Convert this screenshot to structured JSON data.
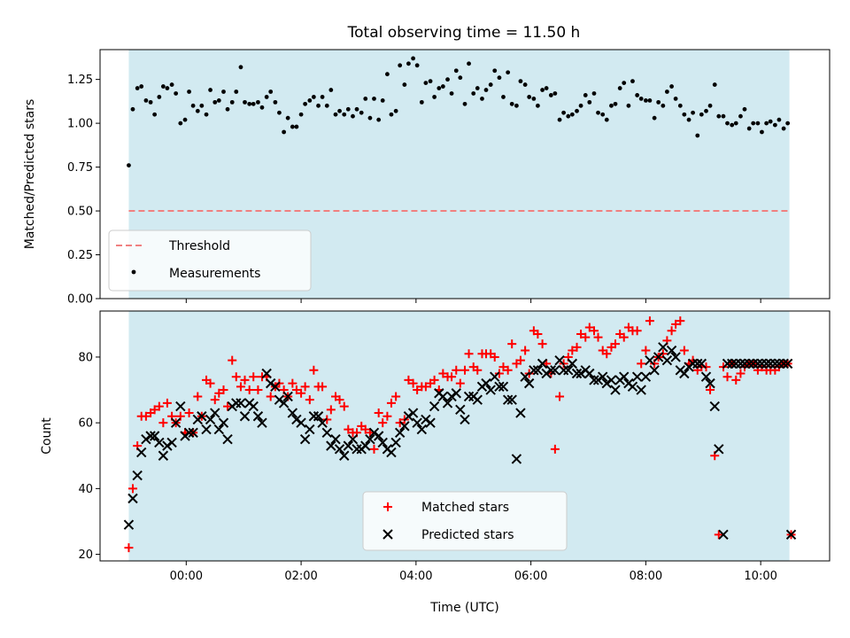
{
  "figure": {
    "title": "Total observing time = 11.50 h"
  },
  "chart_data": [
    {
      "type": "scatter",
      "title": "Total observing time = 11.50 h",
      "xlabel": "",
      "ylabel": "Matched/Predicted stars",
      "x_unit": "hours (UTC)",
      "xlim": [
        -1.5,
        11.2
      ],
      "ylim": [
        0.0,
        1.42
      ],
      "yticks": [
        0.0,
        0.25,
        0.5,
        0.75,
        1.0,
        1.25
      ],
      "ytick_labels": [
        "0.00",
        "0.25",
        "0.50",
        "0.75",
        "1.00",
        "1.25"
      ],
      "xticks": [
        0,
        2,
        4,
        6,
        8,
        10
      ],
      "show_xtick_labels": false,
      "shaded_span": {
        "x0": -1.0,
        "x1": 10.5,
        "color": "#add8e6"
      },
      "threshold": {
        "label": "Threshold",
        "y": 0.5,
        "color": "#f08080",
        "style": "dashed"
      },
      "series": [
        {
          "name": "Measurements",
          "color": "#000000",
          "marker": "dot",
          "x": [
            -1.0,
            -0.93,
            -0.85,
            -0.78,
            -0.7,
            -0.62,
            -0.55,
            -0.47,
            -0.4,
            -0.33,
            -0.25,
            -0.18,
            -0.1,
            -0.02,
            0.05,
            0.12,
            0.2,
            0.27,
            0.35,
            0.42,
            0.5,
            0.57,
            0.65,
            0.72,
            0.8,
            0.87,
            0.95,
            1.02,
            1.1,
            1.17,
            1.25,
            1.32,
            1.4,
            1.47,
            1.55,
            1.62,
            1.7,
            1.77,
            1.85,
            1.92,
            2.0,
            2.07,
            2.15,
            2.22,
            2.3,
            2.37,
            2.45,
            2.52,
            2.6,
            2.67,
            2.75,
            2.82,
            2.9,
            2.97,
            3.05,
            3.12,
            3.2,
            3.27,
            3.35,
            3.42,
            3.5,
            3.57,
            3.65,
            3.72,
            3.8,
            3.87,
            3.95,
            4.02,
            4.1,
            4.17,
            4.25,
            4.32,
            4.4,
            4.47,
            4.55,
            4.62,
            4.7,
            4.77,
            4.85,
            4.92,
            5.0,
            5.07,
            5.15,
            5.22,
            5.3,
            5.37,
            5.45,
            5.52,
            5.6,
            5.67,
            5.75,
            5.82,
            5.9,
            5.97,
            6.05,
            6.12,
            6.2,
            6.27,
            6.35,
            6.42,
            6.5,
            6.57,
            6.65,
            6.72,
            6.8,
            6.87,
            6.95,
            7.02,
            7.1,
            7.17,
            7.25,
            7.32,
            7.4,
            7.47,
            7.55,
            7.62,
            7.7,
            7.77,
            7.85,
            7.92,
            8.0,
            8.07,
            8.15,
            8.22,
            8.3,
            8.37,
            8.45,
            8.52,
            8.6,
            8.67,
            8.75,
            8.82,
            8.9,
            8.97,
            9.05,
            9.12,
            9.2,
            9.27,
            9.35,
            9.42,
            9.5,
            9.57,
            9.65,
            9.72,
            9.8,
            9.87,
            9.95,
            10.02,
            10.1,
            10.17,
            10.25,
            10.32,
            10.4,
            10.47
          ],
          "y": [
            0.76,
            1.08,
            1.2,
            1.21,
            1.13,
            1.12,
            1.05,
            1.15,
            1.21,
            1.2,
            1.22,
            1.17,
            1.0,
            1.02,
            1.18,
            1.1,
            1.07,
            1.1,
            1.05,
            1.19,
            1.12,
            1.13,
            1.18,
            1.08,
            1.12,
            1.18,
            1.32,
            1.12,
            1.11,
            1.11,
            1.12,
            1.09,
            1.15,
            1.18,
            1.12,
            1.06,
            0.95,
            1.03,
            0.98,
            0.98,
            1.05,
            1.11,
            1.13,
            1.15,
            1.1,
            1.15,
            1.1,
            1.19,
            1.05,
            1.07,
            1.05,
            1.08,
            1.04,
            1.08,
            1.06,
            1.14,
            1.03,
            1.14,
            1.02,
            1.13,
            1.28,
            1.05,
            1.07,
            1.33,
            1.22,
            1.34,
            1.37,
            1.33,
            1.12,
            1.23,
            1.24,
            1.15,
            1.2,
            1.21,
            1.25,
            1.17,
            1.3,
            1.26,
            1.11,
            1.34,
            1.17,
            1.2,
            1.14,
            1.19,
            1.22,
            1.3,
            1.26,
            1.15,
            1.29,
            1.11,
            1.1,
            1.24,
            1.22,
            1.15,
            1.14,
            1.1,
            1.19,
            1.2,
            1.16,
            1.17,
            1.02,
            1.06,
            1.04,
            1.05,
            1.07,
            1.1,
            1.16,
            1.12,
            1.17,
            1.06,
            1.05,
            1.02,
            1.1,
            1.11,
            1.2,
            1.23,
            1.1,
            1.24,
            1.16,
            1.14,
            1.13,
            1.13,
            1.03,
            1.12,
            1.1,
            1.18,
            1.21,
            1.14,
            1.1,
            1.05,
            1.02,
            1.06,
            0.93,
            1.05,
            1.07,
            1.1,
            1.22,
            1.04,
            1.04,
            1.0,
            0.99,
            1.0,
            1.04,
            1.08,
            0.97,
            1.0,
            1.0,
            0.95,
            1.0,
            1.01,
            0.99,
            1.02,
            0.97,
            1.0
          ],
          "x_note": "hours"
        }
      ],
      "legend": {
        "placement": "lower-left",
        "entries": [
          "Threshold",
          "Measurements"
        ]
      }
    },
    {
      "type": "scatter",
      "xlabel": "Time (UTC)",
      "ylabel": "Count",
      "xlim": [
        -1.5,
        11.2
      ],
      "ylim": [
        18,
        94
      ],
      "yticks": [
        20,
        40,
        60,
        80
      ],
      "ytick_labels": [
        "20",
        "40",
        "60",
        "80"
      ],
      "xticks": [
        0,
        2,
        4,
        6,
        8,
        10
      ],
      "xtick_labels": [
        "00:00",
        "02:00",
        "04:00",
        "06:00",
        "08:00",
        "10:00"
      ],
      "shaded_span": {
        "x0": -1.0,
        "x1": 10.5,
        "color": "#add8e6"
      },
      "series": [
        {
          "name": "Matched stars",
          "color": "#ff0000",
          "marker": "plus",
          "x": [
            -1.0,
            -0.93,
            -0.85,
            -0.78,
            -0.7,
            -0.62,
            -0.55,
            -0.47,
            -0.4,
            -0.33,
            -0.25,
            -0.18,
            -0.1,
            -0.02,
            0.05,
            0.12,
            0.2,
            0.27,
            0.35,
            0.42,
            0.5,
            0.57,
            0.65,
            0.72,
            0.8,
            0.87,
            0.95,
            1.02,
            1.1,
            1.17,
            1.25,
            1.32,
            1.4,
            1.47,
            1.55,
            1.62,
            1.7,
            1.77,
            1.85,
            1.92,
            2.0,
            2.07,
            2.15,
            2.22,
            2.3,
            2.37,
            2.45,
            2.52,
            2.6,
            2.67,
            2.75,
            2.82,
            2.9,
            2.97,
            3.05,
            3.12,
            3.2,
            3.27,
            3.35,
            3.42,
            3.5,
            3.57,
            3.65,
            3.72,
            3.8,
            3.87,
            3.95,
            4.02,
            4.1,
            4.17,
            4.25,
            4.32,
            4.4,
            4.47,
            4.55,
            4.62,
            4.7,
            4.77,
            4.85,
            4.92,
            5.0,
            5.07,
            5.15,
            5.22,
            5.3,
            5.37,
            5.45,
            5.52,
            5.6,
            5.67,
            5.75,
            5.82,
            5.9,
            5.97,
            6.05,
            6.12,
            6.2,
            6.27,
            6.35,
            6.42,
            6.5,
            6.57,
            6.65,
            6.72,
            6.8,
            6.87,
            6.95,
            7.02,
            7.1,
            7.17,
            7.25,
            7.32,
            7.4,
            7.47,
            7.55,
            7.62,
            7.7,
            7.77,
            7.85,
            7.92,
            8.0,
            8.07,
            8.15,
            8.22,
            8.3,
            8.37,
            8.45,
            8.52,
            8.6,
            8.67,
            8.75,
            8.82,
            8.9,
            8.97,
            9.05,
            9.12,
            9.2,
            9.27,
            9.35,
            9.42,
            9.5,
            9.57,
            9.65,
            9.72,
            9.8,
            9.87,
            9.95,
            10.02,
            10.1,
            10.17,
            10.25,
            10.32,
            10.4,
            10.47,
            10.53
          ],
          "y": [
            22,
            40,
            53,
            62,
            62,
            63,
            64,
            65,
            60,
            66,
            62,
            60,
            62,
            57,
            63,
            57,
            68,
            62,
            73,
            72,
            67,
            69,
            70,
            65,
            79,
            74,
            71,
            73,
            70,
            74,
            70,
            74,
            74,
            68,
            71,
            72,
            70,
            68,
            72,
            70,
            69,
            71,
            67,
            76,
            71,
            71,
            61,
            64,
            68,
            67,
            65,
            58,
            57,
            57,
            59,
            58,
            57,
            52,
            63,
            60,
            62,
            66,
            68,
            60,
            61,
            73,
            72,
            70,
            71,
            71,
            72,
            73,
            70,
            75,
            74,
            74,
            76,
            72,
            76,
            81,
            77,
            76,
            81,
            81,
            81,
            80,
            75,
            77,
            76,
            84,
            78,
            79,
            82,
            75,
            88,
            87,
            84,
            78,
            75,
            52,
            68,
            78,
            80,
            82,
            83,
            87,
            86,
            89,
            88,
            86,
            82,
            81,
            83,
            84,
            87,
            86,
            89,
            88,
            88,
            78,
            82,
            91,
            78,
            80,
            81,
            85,
            88,
            90,
            91,
            82,
            78,
            79,
            76,
            77,
            77,
            70,
            50,
            26,
            77,
            74,
            78,
            73,
            75,
            77,
            78,
            78,
            76,
            77,
            76,
            76,
            76,
            77,
            78,
            78,
            26
          ]
        },
        {
          "name": "Predicted stars",
          "color": "#000000",
          "marker": "x",
          "x": [
            -1.0,
            -0.93,
            -0.85,
            -0.78,
            -0.7,
            -0.62,
            -0.55,
            -0.47,
            -0.4,
            -0.33,
            -0.25,
            -0.18,
            -0.1,
            -0.02,
            0.05,
            0.12,
            0.2,
            0.27,
            0.35,
            0.42,
            0.5,
            0.57,
            0.65,
            0.72,
            0.8,
            0.87,
            0.95,
            1.02,
            1.1,
            1.17,
            1.25,
            1.32,
            1.4,
            1.47,
            1.55,
            1.62,
            1.7,
            1.77,
            1.85,
            1.92,
            2.0,
            2.07,
            2.15,
            2.22,
            2.3,
            2.37,
            2.45,
            2.52,
            2.6,
            2.67,
            2.75,
            2.82,
            2.9,
            2.97,
            3.05,
            3.12,
            3.2,
            3.27,
            3.35,
            3.42,
            3.5,
            3.57,
            3.65,
            3.72,
            3.8,
            3.87,
            3.95,
            4.02,
            4.1,
            4.17,
            4.25,
            4.32,
            4.4,
            4.47,
            4.55,
            4.62,
            4.7,
            4.77,
            4.85,
            4.92,
            5.0,
            5.07,
            5.15,
            5.22,
            5.3,
            5.37,
            5.45,
            5.52,
            5.6,
            5.67,
            5.75,
            5.82,
            5.9,
            5.97,
            6.05,
            6.12,
            6.2,
            6.27,
            6.35,
            6.42,
            6.5,
            6.57,
            6.65,
            6.72,
            6.8,
            6.87,
            6.95,
            7.02,
            7.1,
            7.17,
            7.25,
            7.32,
            7.4,
            7.47,
            7.55,
            7.62,
            7.7,
            7.77,
            7.85,
            7.92,
            8.0,
            8.07,
            8.15,
            8.22,
            8.3,
            8.37,
            8.45,
            8.52,
            8.6,
            8.67,
            8.75,
            8.82,
            8.9,
            8.97,
            9.05,
            9.12,
            9.2,
            9.27,
            9.35,
            9.42,
            9.5,
            9.57,
            9.65,
            9.72,
            9.8,
            9.87,
            9.95,
            10.02,
            10.1,
            10.17,
            10.25,
            10.32,
            10.4,
            10.47,
            10.53
          ],
          "y": [
            29,
            37,
            44,
            51,
            55,
            56,
            56,
            54,
            50,
            53,
            54,
            60,
            65,
            56,
            57,
            57,
            61,
            62,
            58,
            61,
            63,
            58,
            60,
            55,
            65,
            66,
            66,
            62,
            66,
            65,
            62,
            60,
            75,
            72,
            71,
            67,
            66,
            68,
            63,
            61,
            60,
            55,
            58,
            62,
            62,
            60,
            57,
            53,
            55,
            52,
            50,
            53,
            55,
            52,
            52,
            53,
            55,
            57,
            56,
            54,
            52,
            51,
            54,
            57,
            59,
            62,
            63,
            60,
            58,
            61,
            60,
            65,
            69,
            68,
            66,
            68,
            69,
            64,
            61,
            68,
            68,
            67,
            71,
            72,
            70,
            74,
            71,
            71,
            67,
            67,
            49,
            63,
            74,
            72,
            76,
            76,
            78,
            75,
            76,
            76,
            79,
            76,
            76,
            78,
            75,
            75,
            76,
            75,
            73,
            73,
            74,
            72,
            73,
            70,
            73,
            74,
            72,
            71,
            74,
            70,
            74,
            79,
            76,
            80,
            83,
            79,
            82,
            80,
            76,
            75,
            77,
            78,
            78,
            78,
            74,
            72,
            65,
            52,
            26,
            78,
            78,
            78,
            78,
            78,
            78,
            78,
            78,
            78,
            78,
            78,
            78,
            78,
            78,
            78,
            26
          ]
        }
      ],
      "legend": {
        "placement": "lower-center",
        "entries": [
          "Matched stars",
          "Predicted stars"
        ]
      }
    }
  ]
}
